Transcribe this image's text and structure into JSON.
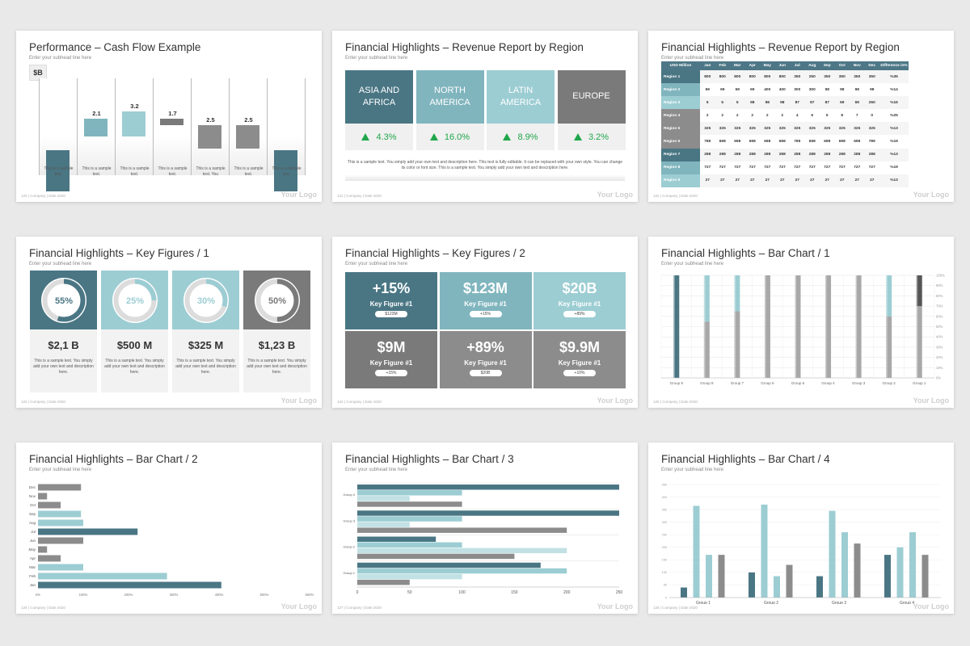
{
  "footer": {
    "logo": "Your Logo",
    "meta": "| Company | Date 2020"
  },
  "colors": {
    "teal_dark": "#4a7684",
    "teal_mid": "#80b5be",
    "teal_light": "#9ccdd3",
    "gray": "#8c8c8c",
    "gray_dark": "#7a7a7a",
    "green": "#1fa64a"
  },
  "slides": [
    {
      "title": "Performance – Cash Flow Example",
      "subtitle": "Enter your subhead line here",
      "page": "120",
      "badge": "$B",
      "values": [
        "2.1",
        "3.2",
        "1.7",
        "2.5",
        "2.5"
      ],
      "captions": [
        "This is a sample text.",
        "This is a sample text.",
        "This is a sample text.",
        "This is a sample text.",
        "This is a sample text. You",
        "This is a sample text.",
        "This is a sample text."
      ]
    },
    {
      "title": "Financial Highlights – Revenue Report by Region",
      "subtitle": "Enter your subhead line here",
      "page": "121",
      "regions": [
        {
          "name": "ASIA AND AFRICA",
          "value": "4.3%"
        },
        {
          "name": "NORTH AMERICA",
          "value": "16.0%"
        },
        {
          "name": "LATIN AMERICA",
          "value": "8.9%"
        },
        {
          "name": "EUROPE",
          "value": "3.2%"
        }
      ],
      "text": "This is a sample text. You simply add your own text and description here. This text is fully editable. It can be replaced with your own style. You can change its color or font size. This is a sample text. You simply add your own text and description here."
    },
    {
      "title": "Financial Highlights – Revenue Report by Region",
      "subtitle": "Enter your subhead line here",
      "page": "122",
      "headers": [
        "USD Million",
        "Jan",
        "Feb",
        "Mar",
        "Apr",
        "May",
        "Jun",
        "Jul",
        "Aug",
        "Sep",
        "Oct",
        "Nov",
        "Dec",
        "Difference in%"
      ],
      "rows": [
        [
          "Region 1",
          "800",
          "800",
          "800",
          "800",
          "800",
          "800",
          "350",
          "250",
          "350",
          "350",
          "350",
          "350",
          "%35"
        ],
        [
          "Region 2",
          "69",
          "69",
          "69",
          "69",
          "400",
          "400",
          "300",
          "300",
          "98",
          "98",
          "98",
          "98",
          "%14"
        ],
        [
          "Region 3",
          "5",
          "5",
          "5",
          "98",
          "98",
          "98",
          "87",
          "87",
          "87",
          "69",
          "69",
          "250",
          "%16"
        ],
        [
          "Region 4",
          "2",
          "2",
          "2",
          "2",
          "2",
          "2",
          "4",
          "6",
          "5",
          "8",
          "7",
          "0",
          "%25"
        ],
        [
          "Region 5",
          "325",
          "325",
          "325",
          "325",
          "325",
          "325",
          "325",
          "325",
          "325",
          "325",
          "325",
          "325",
          "%13"
        ],
        [
          "Region 6",
          "789",
          "698",
          "698",
          "698",
          "698",
          "698",
          "789",
          "698",
          "698",
          "698",
          "698",
          "789",
          "%19"
        ],
        [
          "Region 7",
          "288",
          "288",
          "288",
          "288",
          "288",
          "288",
          "288",
          "288",
          "288",
          "288",
          "288",
          "288",
          "%13"
        ],
        [
          "Region 8",
          "727",
          "727",
          "727",
          "727",
          "727",
          "727",
          "727",
          "727",
          "727",
          "727",
          "727",
          "727",
          "%19"
        ],
        [
          "Region 9",
          "27",
          "27",
          "27",
          "27",
          "27",
          "27",
          "27",
          "27",
          "27",
          "27",
          "27",
          "27",
          "%13"
        ]
      ]
    },
    {
      "title": "Financial Highlights – Key Figures / 1",
      "subtitle": "Enter your subhead line here",
      "page": "123",
      "cards": [
        {
          "pct": "55%",
          "fraction": 0.55,
          "amount": "$2,1 B",
          "text": "This is a sample text. You simply add your own text and description here."
        },
        {
          "pct": "25%",
          "fraction": 0.25,
          "amount": "$500 M",
          "text": "This is a sample text. You simply add your own text and description here."
        },
        {
          "pct": "30%",
          "fraction": 0.3,
          "amount": "$325 M",
          "text": "This is a sample text. You simply add your own text and description here."
        },
        {
          "pct": "50%",
          "fraction": 0.5,
          "amount": "$1,23 B",
          "text": "This is a sample text. You simply add your own text and description here."
        }
      ]
    },
    {
      "title": "Financial Highlights – Key Figures / 2",
      "subtitle": "Enter your subhead line here",
      "page": "124",
      "tiles": [
        {
          "big": "+15%",
          "label": "Key Figure #1",
          "pill": "$123M"
        },
        {
          "big": "$123M",
          "label": "Key Figure #1",
          "pill": "+15%"
        },
        {
          "big": "$20B",
          "label": "Key Figure #1",
          "pill": "+89%"
        },
        {
          "big": "$9M",
          "label": "Key Figure #1",
          "pill": "+15%"
        },
        {
          "big": "+89%",
          "label": "Key Figure #1",
          "pill": "$20B"
        },
        {
          "big": "$9.9M",
          "label": "Key Figure #1",
          "pill": "+10%"
        }
      ]
    },
    {
      "title": "Financial Highlights – Bar Chart / 1",
      "subtitle": "Enter your subhead line here",
      "page": "125"
    },
    {
      "title": "Financial Highlights – Bar Chart / 2",
      "subtitle": "Enter your subhead line here",
      "page": "126"
    },
    {
      "title": "Financial Highlights – Bar Chart / 3",
      "subtitle": "Enter your subhead line here",
      "page": "127"
    },
    {
      "title": "Financial Highlights – Bar Chart / 4",
      "subtitle": "Enter your subhead line here",
      "page": "128"
    }
  ],
  "chart_data": [
    {
      "type": "bar",
      "chart": "Bar Chart / 1",
      "categories": [
        "Group 9",
        "Group 8",
        "Group 7",
        "Group 6",
        "Group 5",
        "Group 4",
        "Group 3",
        "Group 2",
        "Group 1"
      ],
      "series": [
        {
          "values": [
            100,
            45,
            35,
            0,
            0,
            0,
            0,
            40,
            30
          ]
        },
        {
          "values": [
            0,
            55,
            65,
            100,
            100,
            100,
            100,
            60,
            70
          ]
        }
      ],
      "yticks": [
        "0%",
        "10%",
        "20%",
        "30%",
        "40%",
        "50%",
        "60%",
        "70%",
        "80%",
        "90%",
        "100%"
      ],
      "ylim": [
        0,
        100
      ]
    },
    {
      "type": "bar",
      "chart": "Bar Chart / 2",
      "orientation": "horizontal",
      "categories": [
        "Dec",
        "Nov",
        "Oct",
        "Sep",
        "Aug",
        "Jul",
        "Jun",
        "May",
        "Apr",
        "Mar",
        "Feb",
        "Jan"
      ],
      "values": [
        95,
        20,
        50,
        95,
        100,
        220,
        100,
        20,
        50,
        100,
        285,
        405
      ],
      "xticks": [
        "0%",
        "100%",
        "200%",
        "300%",
        "400%",
        "500%",
        "600%"
      ],
      "xlim": [
        0,
        600
      ]
    },
    {
      "type": "bar",
      "chart": "Bar Chart / 3",
      "orientation": "horizontal",
      "categories": [
        "Group 4",
        "Group 3",
        "Group 2",
        "Group 1"
      ],
      "series": [
        {
          "values": [
            250,
            250,
            75,
            175
          ]
        },
        {
          "values": [
            100,
            100,
            100,
            200
          ]
        },
        {
          "values": [
            50,
            50,
            200,
            100
          ]
        },
        {
          "values": [
            100,
            200,
            150,
            50
          ]
        }
      ],
      "xticks": [
        "0",
        "50",
        "100",
        "150",
        "200",
        "250"
      ],
      "xlim": [
        0,
        250
      ]
    },
    {
      "type": "bar",
      "chart": "Bar Chart / 4",
      "categories": [
        "Group 1",
        "Group 2",
        "Group 3",
        "Group 4"
      ],
      "series": [
        {
          "values": [
            40,
            100,
            85,
            170
          ]
        },
        {
          "values": [
            365,
            370,
            345,
            200
          ]
        },
        {
          "values": [
            170,
            85,
            260,
            260
          ]
        },
        {
          "values": [
            170,
            130,
            215,
            170
          ]
        }
      ],
      "ylim": [
        0,
        450
      ]
    }
  ]
}
